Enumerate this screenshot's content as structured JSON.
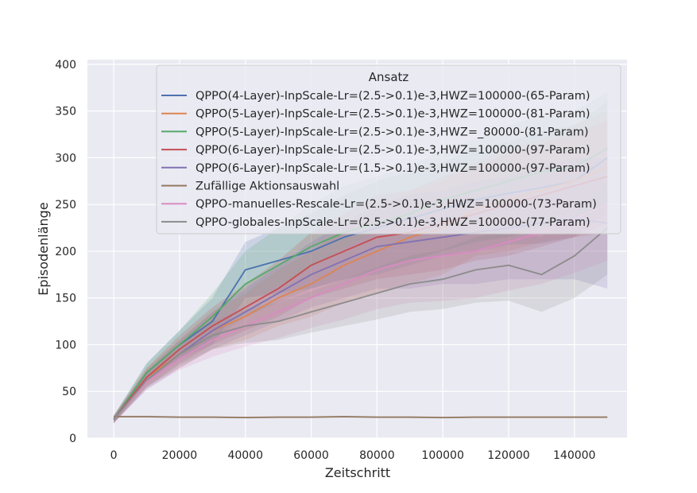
{
  "chart_data": {
    "type": "line",
    "xlabel": "Zeitschritt",
    "ylabel": "Episodenlänge",
    "xlim": [
      -8000,
      156000
    ],
    "ylim": [
      0,
      405
    ],
    "x_ticks": [
      0,
      20000,
      40000,
      60000,
      80000,
      100000,
      120000,
      140000
    ],
    "y_ticks": [
      0,
      50,
      100,
      150,
      200,
      250,
      300,
      350,
      400
    ],
    "grid": true,
    "legend": {
      "title": "Ansatz",
      "placement": "top-right"
    },
    "x": [
      0,
      10000,
      20000,
      30000,
      40000,
      50000,
      60000,
      70000,
      80000,
      90000,
      100000,
      110000,
      120000,
      130000,
      140000,
      150000
    ],
    "series": [
      {
        "name": "QPPO(4-Layer)-InpScale-Lr=(2.5->0.1)e-3,HWZ=100000-(65-Param)",
        "color": "#4c72b0",
        "values": [
          20,
          70,
          100,
          125,
          180,
          190,
          200,
          215,
          225,
          235,
          245,
          255,
          262,
          268,
          275,
          300
        ],
        "spread": [
          4,
          10,
          15,
          25,
          30,
          35,
          40,
          45,
          50,
          50,
          50,
          55,
          55,
          60,
          60,
          60
        ]
      },
      {
        "name": "QPPO(5-Layer)-InpScale-Lr=(2.5->0.1)e-3,HWZ=100000-(81-Param)",
        "color": "#dd8452",
        "values": [
          20,
          65,
          90,
          115,
          130,
          150,
          165,
          185,
          200,
          215,
          225,
          245,
          255,
          265,
          275,
          290
        ],
        "spread": [
          4,
          10,
          15,
          20,
          25,
          30,
          35,
          40,
          45,
          50,
          50,
          50,
          55,
          55,
          60,
          60
        ]
      },
      {
        "name": "QPPO(5-Layer)-InpScale-Lr=(2.5->0.1)e-3,HWZ=_80000-(81-Param)",
        "color": "#55a868",
        "values": [
          20,
          70,
          100,
          130,
          165,
          185,
          205,
          220,
          230,
          240,
          255,
          265,
          275,
          285,
          290,
          310
        ],
        "spread": [
          4,
          10,
          15,
          25,
          35,
          40,
          45,
          50,
          50,
          50,
          55,
          55,
          60,
          60,
          60,
          60
        ]
      },
      {
        "name": "QPPO(6-Layer)-InpScale-Lr=(2.5->0.1)e-3,HWZ=100000-(97-Param)",
        "color": "#c44e52",
        "values": [
          20,
          65,
          95,
          120,
          140,
          160,
          185,
          200,
          215,
          220,
          230,
          240,
          250,
          260,
          270,
          280
        ],
        "spread": [
          4,
          10,
          15,
          20,
          25,
          30,
          35,
          40,
          45,
          45,
          50,
          50,
          55,
          55,
          55,
          60
        ]
      },
      {
        "name": "QPPO(6-Layer)-InpScale-Lr=(1.5->0.1)e-3,HWZ=100000-(97-Param)",
        "color": "#8172b3",
        "values": [
          20,
          62,
          90,
          115,
          135,
          155,
          175,
          190,
          205,
          210,
          215,
          220,
          225,
          230,
          235,
          230
        ],
        "spread": [
          4,
          10,
          15,
          20,
          25,
          30,
          35,
          40,
          45,
          50,
          50,
          55,
          55,
          60,
          65,
          70
        ]
      },
      {
        "name": "Zufällige Aktionsauswahl",
        "color": "#937860",
        "values": [
          23,
          23,
          22.5,
          22.5,
          22,
          22.5,
          22.5,
          23,
          22.5,
          22.5,
          22,
          22.5,
          22.5,
          22.5,
          22.5,
          22.5
        ],
        "spread": [
          1,
          1,
          1,
          1,
          1,
          1,
          1,
          1,
          1,
          1,
          1,
          1,
          1,
          1,
          1,
          1
        ]
      },
      {
        "name": "QPPO-manuelles-Rescale-Lr=(2.5->0.1)e-3,HWZ=100000-(73-Param)",
        "color": "#da8bc3",
        "values": [
          20,
          60,
          85,
          105,
          120,
          135,
          150,
          165,
          180,
          190,
          195,
          200,
          210,
          220,
          235,
          250
        ],
        "spread": [
          4,
          8,
          12,
          18,
          22,
          28,
          32,
          38,
          42,
          45,
          48,
          50,
          52,
          55,
          58,
          60
        ]
      },
      {
        "name": "QPPO-globales-InpScale-Lr=(2.5->0.1)e-3,HWZ=100000-(77-Param)",
        "color": "#8c8c8c",
        "values": [
          20,
          62,
          90,
          110,
          120,
          125,
          135,
          145,
          155,
          165,
          170,
          180,
          185,
          175,
          195,
          225
        ],
        "spread": [
          4,
          8,
          12,
          15,
          18,
          20,
          22,
          25,
          28,
          30,
          32,
          35,
          38,
          40,
          45,
          50
        ]
      }
    ]
  }
}
